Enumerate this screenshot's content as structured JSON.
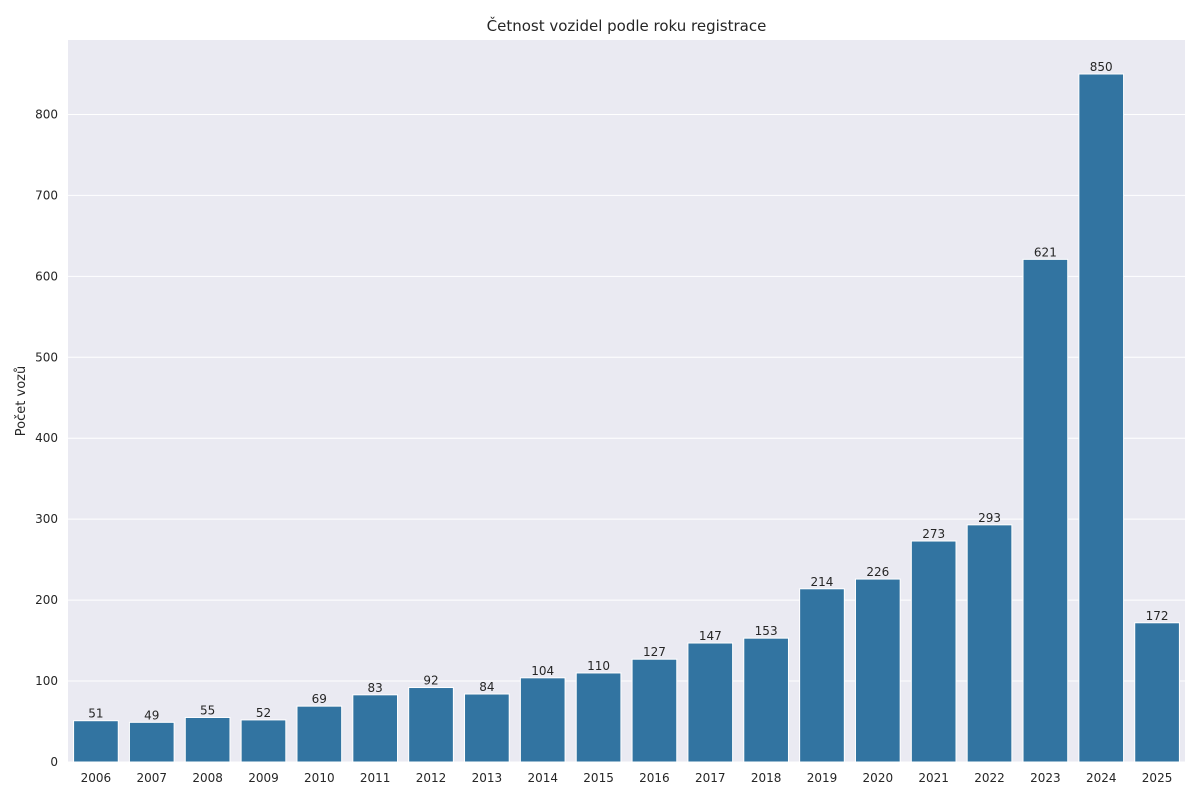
{
  "chart_data": {
    "type": "bar",
    "title": "Četnost vozidel podle roku registrace",
    "xlabel": "",
    "ylabel": "Počet vozů",
    "categories": [
      "2006",
      "2007",
      "2008",
      "2009",
      "2010",
      "2011",
      "2012",
      "2013",
      "2014",
      "2015",
      "2016",
      "2017",
      "2018",
      "2019",
      "2020",
      "2021",
      "2022",
      "2023",
      "2024",
      "2025"
    ],
    "values": [
      51,
      49,
      55,
      52,
      69,
      83,
      92,
      84,
      104,
      110,
      127,
      147,
      153,
      214,
      226,
      273,
      293,
      621,
      850,
      172
    ],
    "ylim": [
      0,
      892
    ],
    "yticks": [
      0,
      100,
      200,
      300,
      400,
      500,
      600,
      700,
      800
    ],
    "grid": true,
    "colors": {
      "bar": "#3274a1",
      "plot_background": "#eaeaf2",
      "grid": "#ffffff"
    }
  }
}
